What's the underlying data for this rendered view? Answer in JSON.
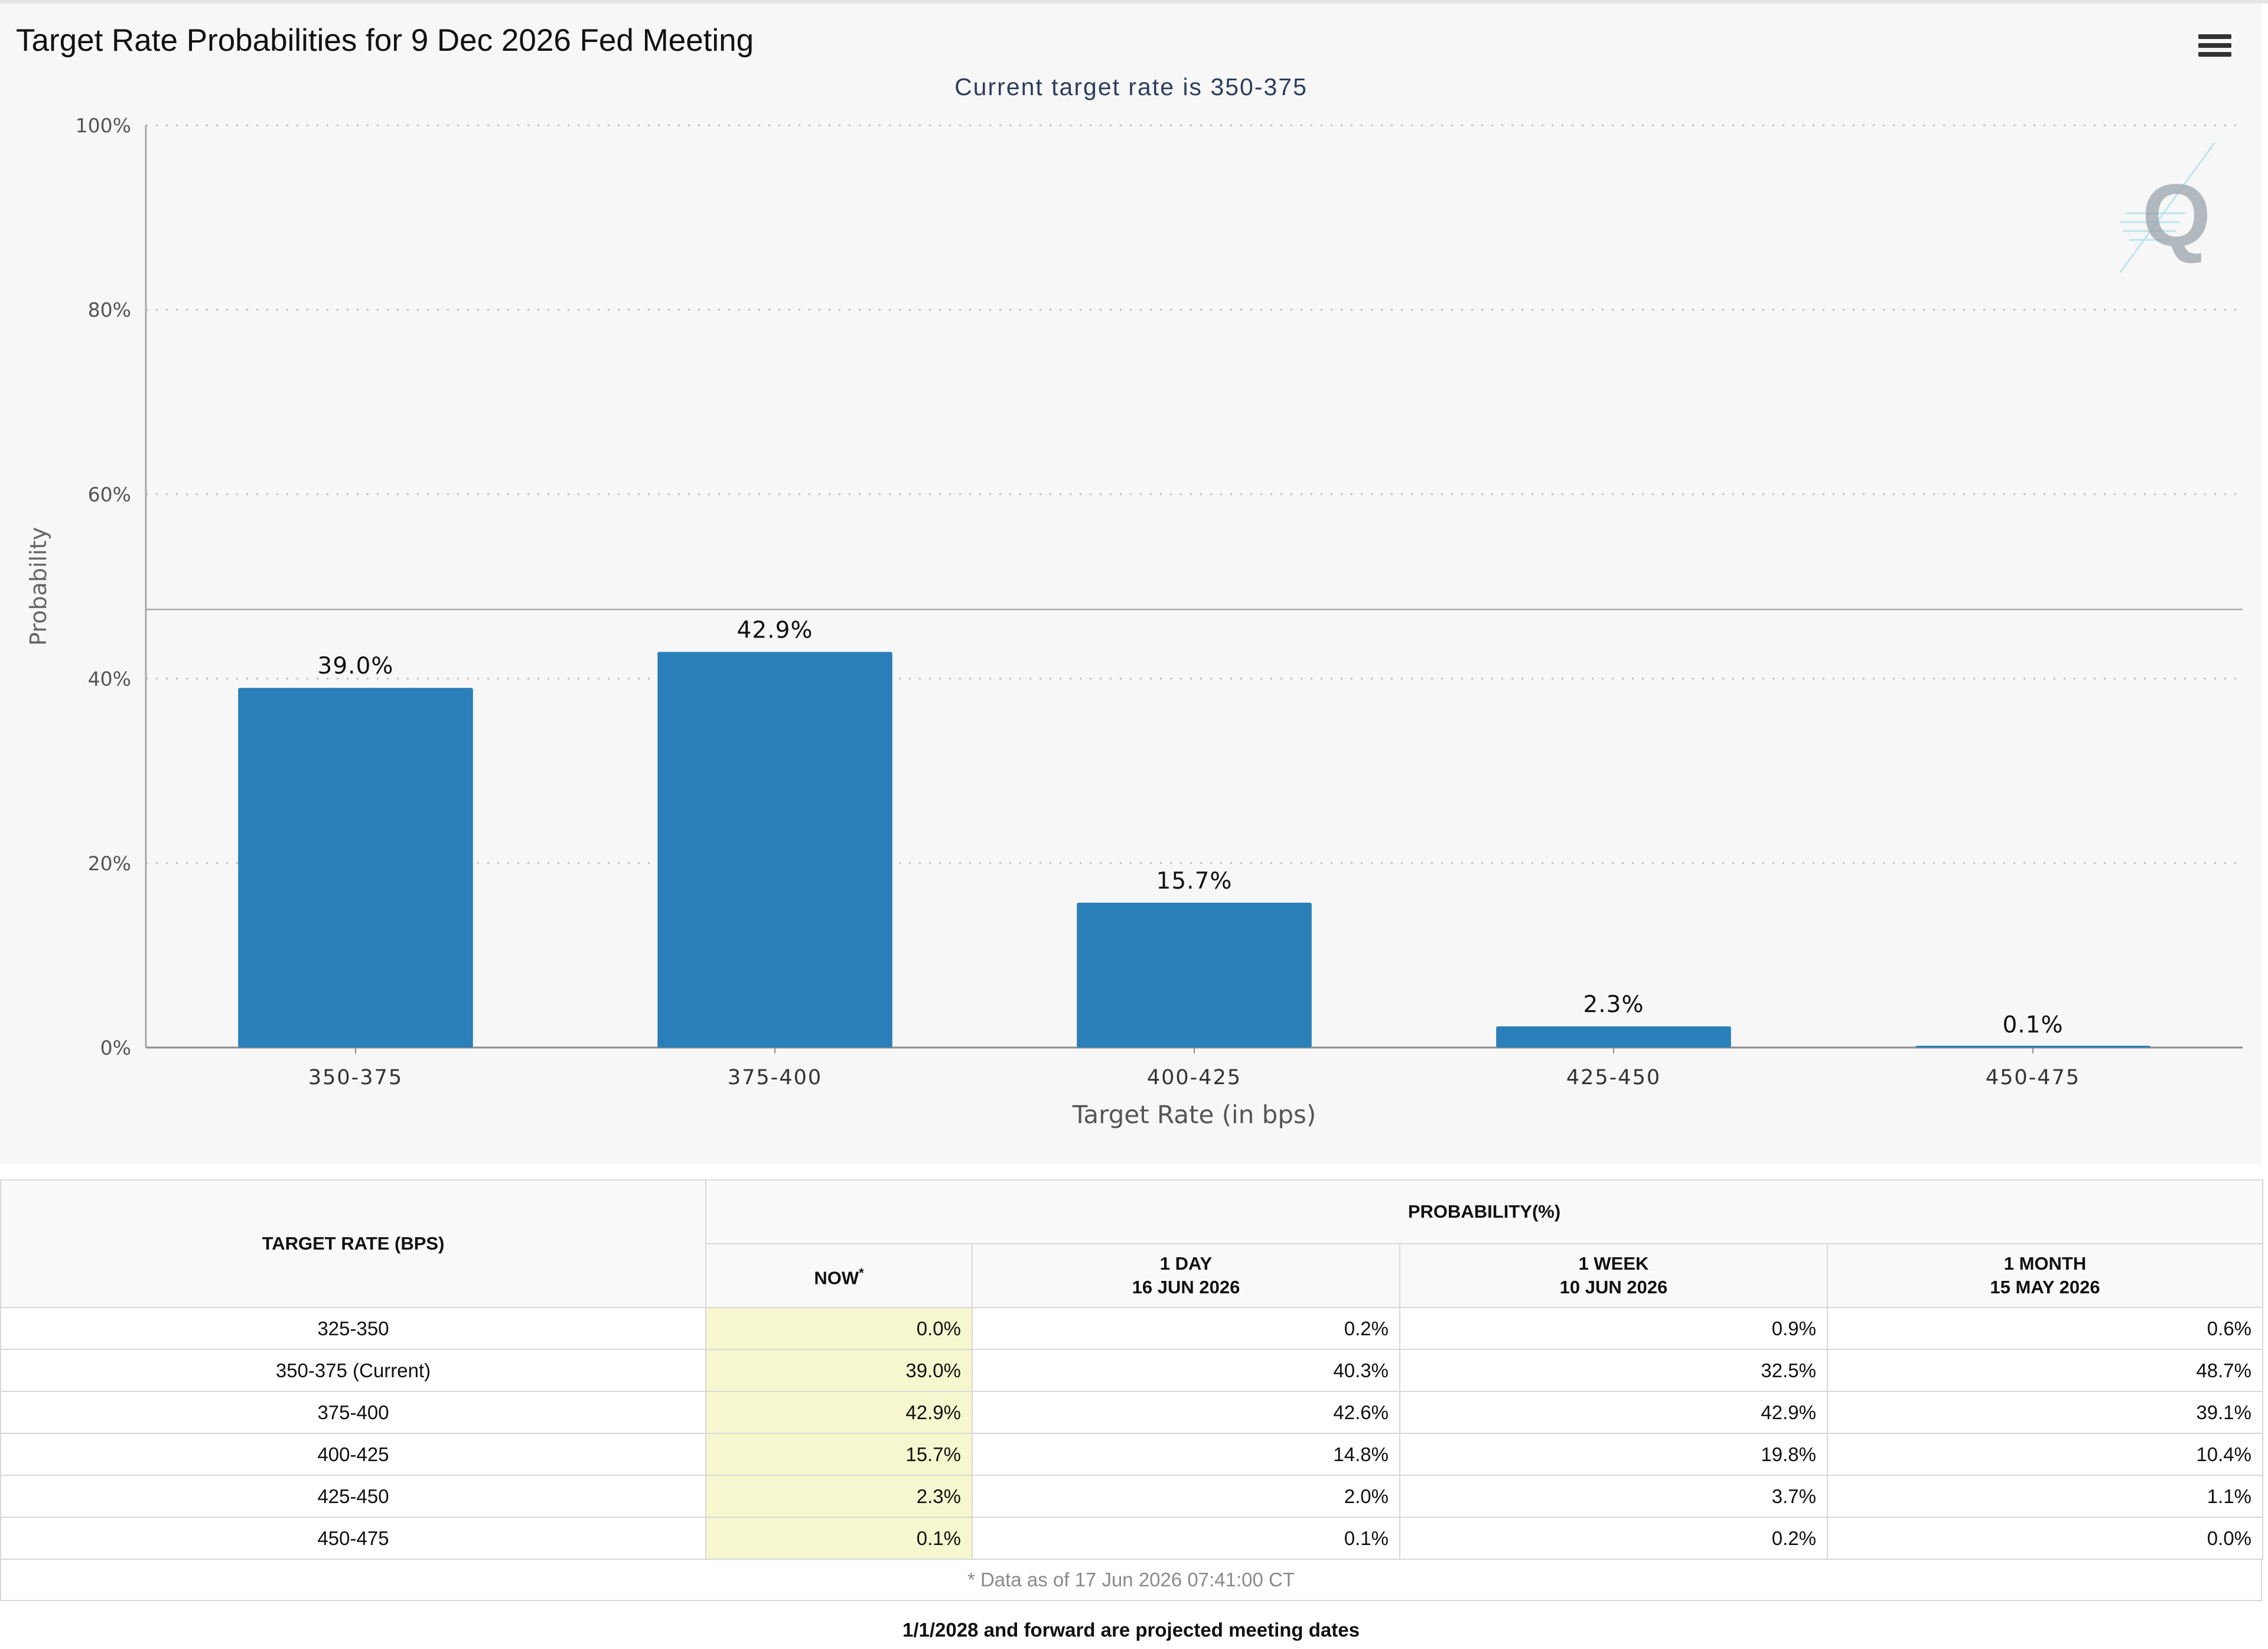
{
  "chart_data": {
    "type": "bar",
    "title": "Target Rate Probabilities for 9 Dec 2026 Fed Meeting",
    "subtitle": "Current target rate is 350-375",
    "xlabel": "Target Rate (in bps)",
    "ylabel": "Probability",
    "categories": [
      "350-375",
      "375-400",
      "400-425",
      "425-450",
      "450-475"
    ],
    "values": [
      39.0,
      42.9,
      15.7,
      2.3,
      0.1
    ],
    "data_labels": [
      "39.0%",
      "42.9%",
      "15.7%",
      "2.3%",
      "0.1%"
    ],
    "ylim": [
      0,
      100
    ],
    "yticks": [
      0,
      20,
      40,
      60,
      80,
      100
    ],
    "ytick_labels": [
      "0%",
      "20%",
      "40%",
      "60%",
      "80%",
      "100%"
    ],
    "reference_line": 47.5,
    "bar_color": "#2a7fb8",
    "grid": true,
    "legend": "none"
  },
  "icons": {
    "menu": "hamburger-menu-icon",
    "watermark": "quikstrike-q-logo"
  },
  "table": {
    "rate_header": "TARGET RATE (BPS)",
    "prob_header": "PROBABILITY(%)",
    "columns": [
      {
        "label": "NOW",
        "sup": "*",
        "date": ""
      },
      {
        "label": "1 DAY",
        "sup": "",
        "date": "16 JUN 2026"
      },
      {
        "label": "1 WEEK",
        "sup": "",
        "date": "10 JUN 2026"
      },
      {
        "label": "1 MONTH",
        "sup": "",
        "date": "15 MAY 2026"
      }
    ],
    "rows": [
      {
        "rate": "325-350",
        "values": [
          "0.0%",
          "0.2%",
          "0.9%",
          "0.6%"
        ]
      },
      {
        "rate": "350-375 (Current)",
        "values": [
          "39.0%",
          "40.3%",
          "32.5%",
          "48.7%"
        ]
      },
      {
        "rate": "375-400",
        "values": [
          "42.9%",
          "42.6%",
          "42.9%",
          "39.1%"
        ]
      },
      {
        "rate": "400-425",
        "values": [
          "15.7%",
          "14.8%",
          "19.8%",
          "10.4%"
        ]
      },
      {
        "rate": "425-450",
        "values": [
          "2.3%",
          "2.0%",
          "3.7%",
          "1.1%"
        ]
      },
      {
        "rate": "450-475",
        "values": [
          "0.1%",
          "0.1%",
          "0.2%",
          "0.0%"
        ]
      }
    ],
    "footnote": "* Data as of 17 Jun 2026 07:41:00 CT"
  },
  "projected_note": "1/1/2028 and forward are projected meeting dates"
}
